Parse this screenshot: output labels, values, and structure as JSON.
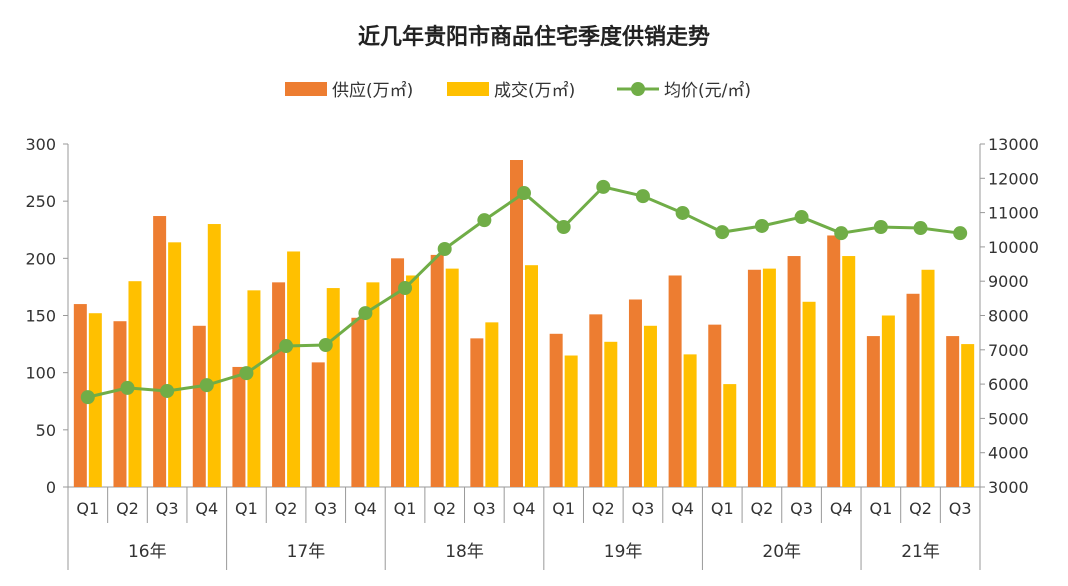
{
  "chart_data": {
    "type": "bar+line",
    "title": "近几年贵阳市商品住宅季度供销走势",
    "categories": [
      "Q1",
      "Q2",
      "Q3",
      "Q4",
      "Q1",
      "Q2",
      "Q3",
      "Q4",
      "Q1",
      "Q2",
      "Q3",
      "Q4",
      "Q1",
      "Q2",
      "Q3",
      "Q4",
      "Q1",
      "Q2",
      "Q3",
      "Q4",
      "Q1",
      "Q2",
      "Q3"
    ],
    "groups": [
      {
        "label": "16年",
        "count": 4
      },
      {
        "label": "17年",
        "count": 4
      },
      {
        "label": "18年",
        "count": 4
      },
      {
        "label": "19年",
        "count": 4
      },
      {
        "label": "20年",
        "count": 4
      },
      {
        "label": "21年",
        "count": 3
      }
    ],
    "series": [
      {
        "name": "供应(万㎡)",
        "type": "bar",
        "axis": "left",
        "color": "#ED7D31",
        "values": [
          160,
          145,
          237,
          141,
          105,
          179,
          109,
          148,
          200,
          203,
          130,
          286,
          134,
          151,
          164,
          185,
          142,
          190,
          202,
          220,
          132,
          169,
          132
        ]
      },
      {
        "name": "成交(万㎡)",
        "type": "bar",
        "axis": "left",
        "color": "#FFC000",
        "values": [
          152,
          180,
          214,
          230,
          172,
          206,
          174,
          179,
          185,
          191,
          144,
          194,
          115,
          127,
          141,
          116,
          90,
          191,
          162,
          202,
          150,
          190,
          125
        ]
      },
      {
        "name": "均价(元/㎡)",
        "type": "line",
        "axis": "right",
        "color": "#70AD47",
        "values": [
          5620,
          5890,
          5800,
          5970,
          6320,
          7110,
          7140,
          8070,
          8800,
          9940,
          10780,
          11570,
          10580,
          11750,
          11480,
          10990,
          10430,
          10610,
          10870,
          10400,
          10580,
          10550,
          10400
        ]
      }
    ],
    "y_left": {
      "range": [
        0,
        300
      ],
      "ticks": [
        0,
        50,
        100,
        150,
        200,
        250,
        300
      ]
    },
    "y_right": {
      "range": [
        3000,
        13000
      ],
      "ticks": [
        3000,
        4000,
        5000,
        6000,
        7000,
        8000,
        9000,
        10000,
        11000,
        12000,
        13000
      ]
    },
    "grid": false,
    "legend_position": "top"
  }
}
